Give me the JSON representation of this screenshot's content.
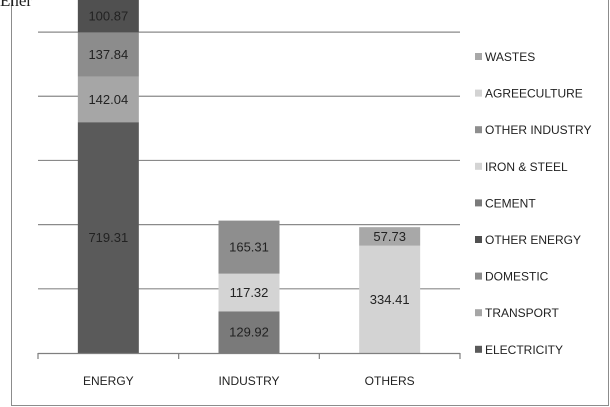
{
  "caption_fragment": "Ener",
  "colors": {
    "ELECTRICITY": "#5a5a5a",
    "TRANSPORT": "#a6a6a6",
    "DOMESTIC": "#8c8c8c",
    "OTHER ENERGY": "#505050",
    "CEMENT": "#7a7a7a",
    "IRON & STEEL": "#d4d4d4",
    "OTHER INDUSTRY": "#8e8e8e",
    "AGREECULTURE": "#d3d3d3",
    "WASTES": "#a8a8a8"
  },
  "chart_data": {
    "type": "bar",
    "stacked": true,
    "categories": [
      "ENERGY",
      "INDUSTRY",
      "OTHERS"
    ],
    "ylim": [
      0,
      1100
    ],
    "grid": true,
    "legend_position": "right",
    "legend_entries": [
      "WASTES",
      "AGREECULTURE",
      "OTHER INDUSTRY",
      "IRON & STEEL",
      "CEMENT",
      "OTHER ENERGY",
      "DOMESTIC",
      "TRANSPORT",
      "ELECTRICITY"
    ],
    "series": [
      {
        "name": "ELECTRICITY",
        "values": [
          719.31,
          0,
          0
        ]
      },
      {
        "name": "TRANSPORT",
        "values": [
          142.04,
          0,
          0
        ]
      },
      {
        "name": "DOMESTIC",
        "values": [
          137.84,
          0,
          0
        ]
      },
      {
        "name": "OTHER ENERGY",
        "values": [
          100.87,
          0,
          0
        ]
      },
      {
        "name": "CEMENT",
        "values": [
          0,
          129.92,
          0
        ]
      },
      {
        "name": "IRON & STEEL",
        "values": [
          0,
          117.32,
          0
        ]
      },
      {
        "name": "OTHER INDUSTRY",
        "values": [
          0,
          165.31,
          0
        ]
      },
      {
        "name": "AGREECULTURE",
        "values": [
          0,
          0,
          334.41
        ]
      },
      {
        "name": "WASTES",
        "values": [
          0,
          0,
          57.73
        ]
      }
    ]
  }
}
